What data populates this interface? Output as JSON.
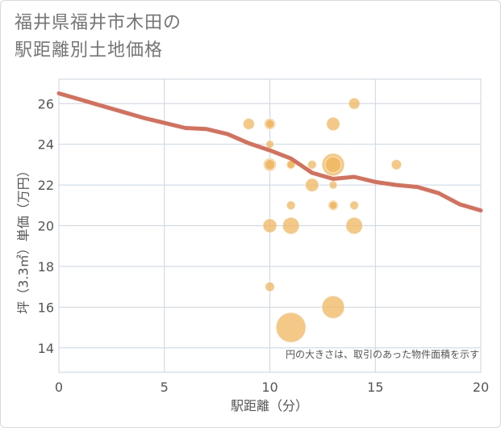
{
  "title_lines": [
    "福井県福井市木田の",
    "駅距離別土地価格"
  ],
  "chart_data": {
    "type": "scatter",
    "title": "福井県福井市木田の駅距離別土地価格",
    "xlabel": "駅距離（分）",
    "ylabel": "坪（3.3㎡）単価（万円）",
    "xlim": [
      0,
      20
    ],
    "ylim": [
      12.8,
      27.2
    ],
    "xticks": [
      0,
      5,
      10,
      15,
      20
    ],
    "yticks": [
      14,
      16,
      18,
      20,
      22,
      24,
      26
    ],
    "grid": true,
    "annotation": "円の大きさは、取引のあった物件面積を示す",
    "colors": {
      "bubble": "#f0b45a",
      "trend": "#d4705c",
      "grid": "#c8d6e6",
      "axis_text": "#555555"
    },
    "bubbles": [
      {
        "x": 9,
        "y": 25,
        "size": 1
      },
      {
        "x": 10,
        "y": 25,
        "size": 1
      },
      {
        "x": 10,
        "y": 25,
        "size": 0.6
      },
      {
        "x": 10,
        "y": 24,
        "size": 0.5
      },
      {
        "x": 10,
        "y": 23,
        "size": 1.3
      },
      {
        "x": 10,
        "y": 23,
        "size": 0.8
      },
      {
        "x": 10,
        "y": 20,
        "size": 1.5
      },
      {
        "x": 10,
        "y": 17,
        "size": 0.7
      },
      {
        "x": 11,
        "y": 23,
        "size": 0.7
      },
      {
        "x": 11,
        "y": 23,
        "size": 0.5
      },
      {
        "x": 11,
        "y": 21,
        "size": 0.6
      },
      {
        "x": 11,
        "y": 20,
        "size": 2.2
      },
      {
        "x": 11,
        "y": 15,
        "size": 7
      },
      {
        "x": 12,
        "y": 23,
        "size": 0.6
      },
      {
        "x": 12,
        "y": 22,
        "size": 1.4
      },
      {
        "x": 13,
        "y": 25,
        "size": 1.4
      },
      {
        "x": 13,
        "y": 23,
        "size": 4
      },
      {
        "x": 13,
        "y": 23,
        "size": 2
      },
      {
        "x": 13,
        "y": 22,
        "size": 0.5
      },
      {
        "x": 13,
        "y": 21,
        "size": 0.8
      },
      {
        "x": 13,
        "y": 21,
        "size": 0.5
      },
      {
        "x": 13,
        "y": 16,
        "size": 4
      },
      {
        "x": 14,
        "y": 26,
        "size": 1
      },
      {
        "x": 14,
        "y": 21,
        "size": 0.6
      },
      {
        "x": 14,
        "y": 20,
        "size": 2.2
      },
      {
        "x": 16,
        "y": 23,
        "size": 0.8
      }
    ],
    "trend": {
      "x": [
        0,
        1,
        2,
        3,
        4,
        5,
        6,
        7,
        8,
        9,
        10,
        11,
        12,
        13,
        14,
        15,
        16,
        17,
        18,
        19,
        20
      ],
      "y": [
        26.5,
        26.2,
        25.9,
        25.6,
        25.3,
        25.05,
        24.8,
        24.75,
        24.5,
        24.05,
        23.7,
        23.3,
        22.6,
        22.3,
        22.4,
        22.15,
        22.0,
        21.9,
        21.6,
        21.05,
        20.75
      ]
    }
  }
}
